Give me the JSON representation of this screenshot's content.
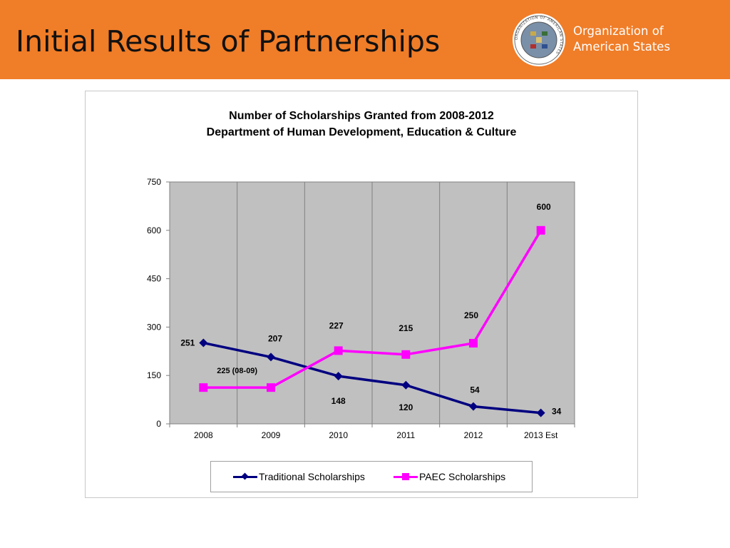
{
  "slide": {
    "title": "Initial Results of Partnerships",
    "org_name_line1": "Organization of",
    "org_name_line2": "American States",
    "seal_text": "ORGANIZATION OF AMERICAN STATES",
    "header_color": "#f07d28"
  },
  "chart_data": {
    "type": "line",
    "title": "Number of Scholarships Granted from 2008-2012",
    "subtitle": "Department of Human Development, Education & Culture",
    "categories": [
      "2008",
      "2009",
      "2010",
      "2011",
      "2012",
      "2013 Est"
    ],
    "ylim": [
      0,
      750
    ],
    "yticks": [
      "0",
      "150",
      "300",
      "450",
      "600",
      "750"
    ],
    "grid": "vertical",
    "plot_background": "#c0c0c0",
    "legend_position": "bottom",
    "series": [
      {
        "name": "Traditional Scholarships",
        "color": "#000080",
        "marker": "diamond",
        "values": [
          251,
          207,
          148,
          120,
          54,
          34
        ],
        "labels": [
          "251",
          "207",
          "148",
          "120",
          "54",
          "34"
        ]
      },
      {
        "name": "PAEC Scholarships",
        "color": "#ff00ff",
        "marker": "square",
        "values": [
          112.5,
          112.5,
          227,
          215,
          250,
          600
        ],
        "labels": [
          "",
          "",
          "227",
          "215",
          "250",
          "600"
        ]
      }
    ],
    "annotations": [
      {
        "text": "225 (08-09)",
        "near_category": "2008-2009"
      }
    ]
  }
}
